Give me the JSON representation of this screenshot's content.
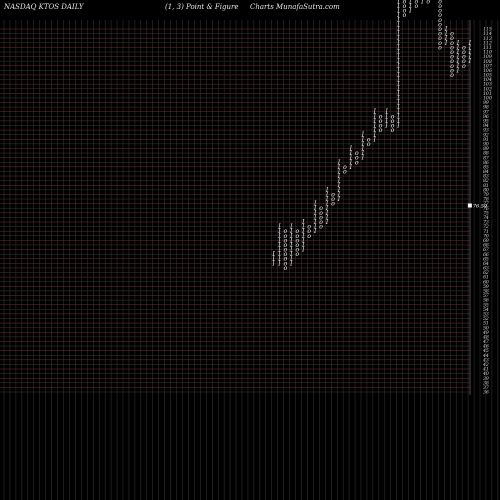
{
  "header": {
    "left": "NASDAQ KTOS DAILY",
    "center": "(1,  3) Point & Figure",
    "right": "Charts MunafaSutra.com"
  },
  "chart_data": {
    "type": "point-and-figure",
    "box_size": 1,
    "reversal": 3,
    "y_tick_labels": [
      "36",
      "37",
      "38",
      "39",
      "40",
      "41",
      "42",
      "43",
      "44",
      "45",
      "46",
      "47",
      "48",
      "49",
      "50",
      "51",
      "52",
      "53",
      "54",
      "55",
      "56",
      "57",
      "58",
      "59",
      "60",
      "61",
      "62",
      "63",
      "64",
      "65",
      "66",
      "67",
      "68",
      "69",
      "70",
      "71",
      "72",
      "73",
      "74",
      "75",
      "76",
      "77",
      "78",
      "79",
      "80",
      "81",
      "82",
      "83",
      "84",
      "85",
      "86",
      "87",
      "88",
      "89",
      "90",
      "91",
      "92",
      "93",
      "94",
      "95",
      "96",
      "97",
      "98",
      "99",
      "100",
      "101",
      "102",
      "103",
      "104",
      "105",
      "106",
      "107",
      "108",
      "109",
      "110",
      "111",
      "112",
      "113",
      "114",
      "115"
    ],
    "current_price": "76.59",
    "columns": [
      {
        "type": "X",
        "from": 28,
        "to": 30
      },
      {
        "type": "X",
        "from": 28,
        "to": 36
      },
      {
        "type": "O",
        "from": 27,
        "to": 35
      },
      {
        "type": "X",
        "from": 28,
        "to": 36
      },
      {
        "type": "O",
        "from": 30,
        "to": 35
      },
      {
        "type": "X",
        "from": 31,
        "to": 37
      },
      {
        "type": "O",
        "from": 34,
        "to": 36
      },
      {
        "type": "X",
        "from": 35,
        "to": 41
      },
      {
        "type": "O",
        "from": 36,
        "to": 40
      },
      {
        "type": "X",
        "from": 37,
        "to": 44
      },
      {
        "type": "O",
        "from": 41,
        "to": 43
      },
      {
        "type": "X",
        "from": 42,
        "to": 50
      },
      {
        "type": "O",
        "from": 48,
        "to": 49
      },
      {
        "type": "X",
        "from": 49,
        "to": 53
      },
      {
        "type": "O",
        "from": 50,
        "to": 52
      },
      {
        "type": "X",
        "from": 51,
        "to": 56
      },
      {
        "type": "O",
        "from": 54,
        "to": 55
      },
      {
        "type": "X",
        "from": 55,
        "to": 61
      },
      {
        "type": "O",
        "from": 57,
        "to": 60
      },
      {
        "type": "X",
        "from": 58,
        "to": 61
      },
      {
        "type": "O",
        "from": 57,
        "to": 60
      },
      {
        "type": "X",
        "from": 58,
        "to": 101
      },
      {
        "type": "O",
        "from": 82,
        "to": 100
      },
      {
        "type": "X",
        "from": 83,
        "to": 87
      },
      {
        "type": "O",
        "from": 84,
        "to": 86
      },
      {
        "type": "X",
        "from": 85,
        "to": 92
      },
      {
        "type": "O",
        "from": 85,
        "to": 91
      },
      {
        "type": "X",
        "from": 86,
        "to": 89
      },
      {
        "type": "O",
        "from": 75,
        "to": 88
      },
      {
        "type": "X",
        "from": 76,
        "to": 79
      },
      {
        "type": "O",
        "from": 69,
        "to": 78
      },
      {
        "type": "X",
        "from": 70,
        "to": 76
      },
      {
        "type": "O",
        "from": 71,
        "to": 75
      },
      {
        "type": "X",
        "from": 72,
        "to": 76
      }
    ]
  }
}
